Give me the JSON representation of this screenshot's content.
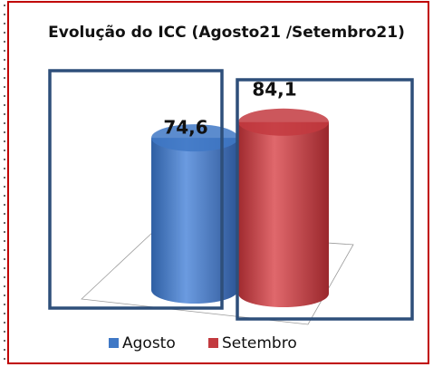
{
  "chart_data": {
    "type": "bar3d",
    "title": "Evolução do ICC (Agosto21 /Setembro21)",
    "series": [
      {
        "name": "Agosto",
        "color": "#3f78c6",
        "values": [
          74.6
        ],
        "value_labels": [
          "74,6"
        ]
      },
      {
        "name": "Setembro",
        "color": "#c33a3f",
        "values": [
          84.1
        ],
        "value_labels": [
          "84,1"
        ]
      }
    ]
  }
}
